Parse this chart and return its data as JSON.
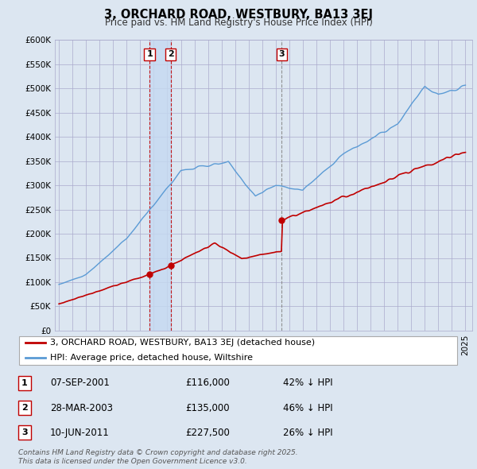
{
  "title": "3, ORCHARD ROAD, WESTBURY, BA13 3EJ",
  "subtitle": "Price paid vs. HM Land Registry's House Price Index (HPI)",
  "legend_label_red": "3, ORCHARD ROAD, WESTBURY, BA13 3EJ (detached house)",
  "legend_label_blue": "HPI: Average price, detached house, Wiltshire",
  "footnote": "Contains HM Land Registry data © Crown copyright and database right 2025.\nThis data is licensed under the Open Government Licence v3.0.",
  "transactions": [
    {
      "num": 1,
      "date": "07-SEP-2001",
      "price": 116000,
      "hpi_diff": "42% ↓ HPI",
      "year": 2001.69
    },
    {
      "num": 2,
      "date": "28-MAR-2003",
      "price": 135000,
      "hpi_diff": "46% ↓ HPI",
      "year": 2003.24
    },
    {
      "num": 3,
      "date": "10-JUN-2011",
      "price": 227500,
      "hpi_diff": "26% ↓ HPI",
      "year": 2011.44
    }
  ],
  "hpi_color": "#5b9bd5",
  "price_color": "#c00000",
  "ylim": [
    0,
    600000
  ],
  "yticks": [
    0,
    50000,
    100000,
    150000,
    200000,
    250000,
    300000,
    350000,
    400000,
    450000,
    500000,
    550000,
    600000
  ],
  "background_color": "#dce6f1",
  "plot_bg": "#dce6f1",
  "grid_color": "#aaaacc"
}
